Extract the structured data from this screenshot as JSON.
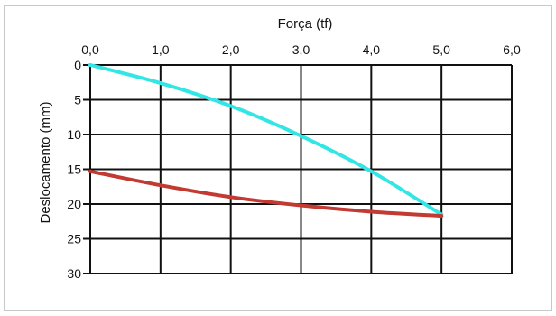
{
  "chart_data": {
    "type": "line",
    "xlabel": "Força (tf)",
    "ylabel": "Deslocamento (mm)",
    "x_axis_position": "top",
    "y_axis_inverted": true,
    "xlim": [
      0,
      6
    ],
    "ylim": [
      0,
      30
    ],
    "x_ticks": [
      "0,0",
      "1,0",
      "2,0",
      "3,0",
      "4,0",
      "5,0",
      "6,0"
    ],
    "y_ticks": [
      "0",
      "5",
      "10",
      "15",
      "20",
      "25",
      "30"
    ],
    "grid": true,
    "legend": "none",
    "series": [
      {
        "color": "#33e6e6",
        "x": [
          0,
          1,
          2,
          3,
          4,
          5
        ],
        "y": [
          0,
          2.6,
          5.9,
          10.2,
          15.3,
          21.5
        ]
      },
      {
        "color": "#c23a32",
        "x": [
          0,
          1,
          2,
          3,
          4,
          5
        ],
        "y": [
          15.3,
          17.3,
          19.0,
          20.2,
          21.1,
          21.7
        ]
      }
    ]
  }
}
